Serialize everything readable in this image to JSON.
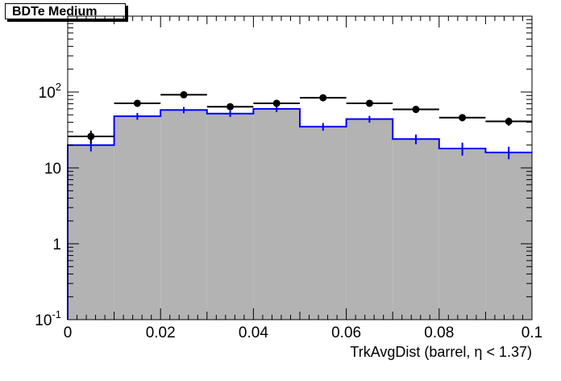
{
  "title": "BDTe Medium",
  "chart_data": {
    "type": "histogram",
    "title": "BDTe Medium",
    "xlabel": "TrkAvgDist (barrel,  η < 1.37)",
    "ylabel": "",
    "xlim": [
      0,
      0.1
    ],
    "ylim": [
      0.1,
      1000
    ],
    "yscale": "log",
    "bin_edges": [
      0,
      0.01,
      0.02,
      0.03,
      0.04,
      0.05,
      0.06,
      0.07,
      0.08,
      0.09,
      0.1
    ],
    "x_tick_labels": [
      "0",
      "0.02",
      "0.04",
      "0.06",
      "0.08",
      "0.1"
    ],
    "y_tick_labels": [
      {
        "value": 0.1,
        "base": "10",
        "exp": "-1"
      },
      {
        "value": 1,
        "base": "1",
        "exp": ""
      },
      {
        "value": 10,
        "base": "10",
        "exp": ""
      },
      {
        "value": 100,
        "base": "10",
        "exp": "2"
      }
    ],
    "series": [
      {
        "style": "filled-histogram",
        "fill_color": "#b3b3b3",
        "line_color": "#0000ff",
        "values": [
          20,
          48,
          58,
          52,
          60,
          35,
          44,
          24,
          18,
          16
        ],
        "errors": [
          3.5,
          5,
          5.5,
          5,
          5.5,
          4,
          4.5,
          3.5,
          3.5,
          3
        ]
      },
      {
        "style": "points",
        "marker_color": "#000000",
        "values": [
          26,
          71,
          92,
          64,
          71,
          84,
          71,
          59,
          46,
          41
        ],
        "errors": [
          5,
          6.5,
          7,
          6,
          6.5,
          7,
          6.5,
          6,
          5,
          5
        ]
      }
    ]
  }
}
